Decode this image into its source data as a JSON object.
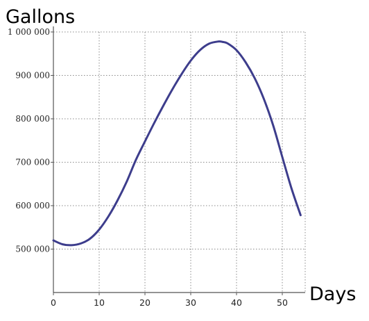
{
  "chart_data": {
    "type": "line",
    "title": "",
    "xlabel": "Days",
    "ylabel": "Gallons",
    "xlim": [
      0,
      55
    ],
    "ylim": [
      400000,
      1000000
    ],
    "x_ticks": [
      0,
      10,
      20,
      30,
      40,
      50
    ],
    "x_tick_labels": [
      "0",
      "10",
      "20",
      "30",
      "40",
      "50"
    ],
    "y_ticks": [
      500000,
      600000,
      700000,
      800000,
      900000,
      1000000
    ],
    "y_tick_labels": [
      "500 000",
      "600 000",
      "700 000",
      "800 000",
      "900 000",
      "1 000 000"
    ],
    "grid": true,
    "series": [
      {
        "color": "#3d3d8c",
        "x": [
          0,
          2,
          4,
          6,
          8,
          10,
          12,
          14,
          16,
          18,
          20,
          22,
          24,
          26,
          28,
          30,
          32,
          34,
          36,
          37,
          38,
          40,
          42,
          44,
          46,
          48,
          50,
          52,
          54
        ],
        "y": [
          520000,
          511000,
          509000,
          513000,
          524000,
          545000,
          575000,
          612000,
          655000,
          705000,
          748000,
          790000,
          830000,
          868000,
          903000,
          934000,
          958000,
          973000,
          978000,
          977000,
          974000,
          958000,
          930000,
          893000,
          845000,
          785000,
          712000,
          640000,
          578000
        ]
      }
    ]
  }
}
